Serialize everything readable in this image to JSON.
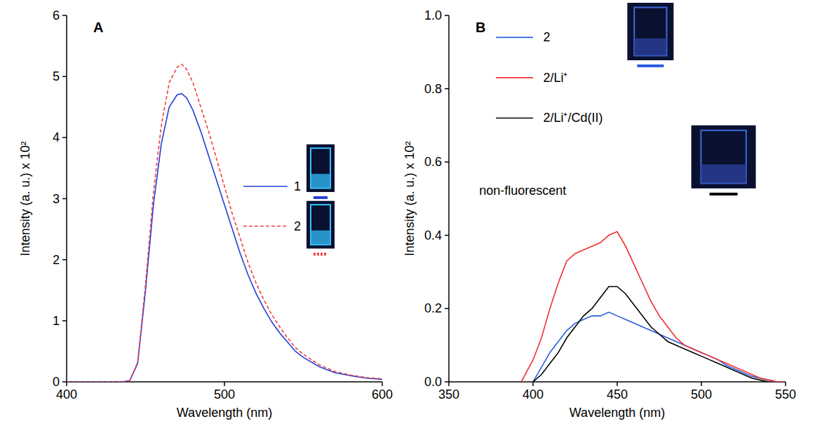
{
  "chart_data": [
    {
      "type": "line",
      "panel": "A",
      "x_label": "Wavelength (nm)",
      "y_label": "Intensity (a. u.) x 10²",
      "xlim": [
        400,
        600
      ],
      "xticks": [
        400,
        500,
        600
      ],
      "ylim": [
        0,
        6
      ],
      "yticks": [
        0,
        1,
        2,
        3,
        4,
        5,
        6
      ],
      "legend": "right",
      "series": [
        {
          "name": "1",
          "color": "#1f3fd6",
          "line_style": "solid",
          "x": [
            400,
            420,
            435,
            440,
            445,
            450,
            455,
            460,
            465,
            470,
            473,
            476,
            480,
            485,
            490,
            495,
            500,
            505,
            510,
            515,
            520,
            525,
            530,
            535,
            540,
            545,
            550,
            560,
            570,
            580,
            590,
            600
          ],
          "values": [
            0,
            0,
            0,
            0.02,
            0.3,
            1.5,
            2.9,
            3.9,
            4.5,
            4.7,
            4.72,
            4.65,
            4.45,
            4.1,
            3.7,
            3.3,
            2.9,
            2.5,
            2.1,
            1.75,
            1.45,
            1.2,
            0.98,
            0.8,
            0.65,
            0.5,
            0.4,
            0.25,
            0.15,
            0.1,
            0.06,
            0.04
          ]
        },
        {
          "name": "2",
          "color": "#f04040",
          "line_style": "dashed",
          "x": [
            400,
            420,
            435,
            440,
            445,
            450,
            455,
            460,
            465,
            470,
            473,
            476,
            480,
            485,
            490,
            495,
            500,
            505,
            510,
            515,
            520,
            525,
            530,
            535,
            540,
            545,
            550,
            560,
            570,
            580,
            590,
            600
          ],
          "values": [
            0,
            0,
            0,
            0.02,
            0.32,
            1.6,
            3.1,
            4.2,
            4.9,
            5.15,
            5.2,
            5.12,
            4.9,
            4.5,
            4.1,
            3.65,
            3.2,
            2.75,
            2.35,
            1.95,
            1.62,
            1.34,
            1.1,
            0.9,
            0.72,
            0.56,
            0.45,
            0.28,
            0.17,
            0.11,
            0.07,
            0.05
          ]
        }
      ]
    },
    {
      "type": "line",
      "panel": "B",
      "x_label": "Wavelength (nm)",
      "y_label": "Intensity (a. u.) x 10²",
      "xlim": [
        350,
        550
      ],
      "xticks": [
        350,
        400,
        450,
        500,
        550
      ],
      "ylim": [
        0,
        1
      ],
      "yticks": [
        {
          "value": 0,
          "label": "0.0"
        },
        0.2,
        0.4,
        0.6,
        0.8,
        {
          "value": 1,
          "label": "1.0"
        }
      ],
      "legend": "upper left",
      "annotations": [
        "non-fluorescent"
      ],
      "series": [
        {
          "name": "2",
          "color": "#2a5fe0",
          "line_style": "solid",
          "x": [
            400,
            405,
            410,
            415,
            420,
            425,
            430,
            435,
            440,
            445,
            450,
            455,
            460,
            465,
            470,
            475,
            480,
            485,
            490,
            495,
            500,
            505,
            510,
            515,
            520,
            525,
            530,
            535,
            540,
            545,
            550
          ],
          "values": [
            0,
            0.04,
            0.08,
            0.11,
            0.14,
            0.16,
            0.17,
            0.18,
            0.18,
            0.19,
            0.18,
            0.17,
            0.16,
            0.15,
            0.14,
            0.13,
            0.12,
            0.11,
            0.1,
            0.09,
            0.08,
            0.07,
            0.06,
            0.045,
            0.035,
            0.025,
            0.015,
            0.01,
            0.005,
            0,
            0
          ]
        },
        {
          "name": "2/Li⁺",
          "color": "#f03030",
          "line_style": "solid",
          "x": [
            393,
            400,
            405,
            410,
            415,
            420,
            425,
            430,
            435,
            440,
            445,
            450,
            455,
            460,
            465,
            470,
            475,
            480,
            485,
            490,
            495,
            500,
            505,
            510,
            515,
            520,
            525,
            530,
            535,
            540,
            545,
            550
          ],
          "values": [
            0,
            0.06,
            0.12,
            0.2,
            0.27,
            0.33,
            0.35,
            0.36,
            0.37,
            0.38,
            0.4,
            0.41,
            0.37,
            0.32,
            0.27,
            0.22,
            0.18,
            0.15,
            0.12,
            0.1,
            0.09,
            0.08,
            0.07,
            0.06,
            0.05,
            0.04,
            0.03,
            0.02,
            0.01,
            0.005,
            0,
            0
          ]
        },
        {
          "name": "2/Li⁺/Cd(II)",
          "color": "#000000",
          "line_style": "solid",
          "x": [
            400,
            405,
            410,
            415,
            420,
            425,
            430,
            435,
            440,
            445,
            450,
            455,
            460,
            465,
            470,
            475,
            480,
            485,
            490,
            495,
            500,
            505,
            510,
            515,
            520,
            525,
            530,
            535,
            540
          ],
          "values": [
            0,
            0.02,
            0.05,
            0.08,
            0.12,
            0.15,
            0.18,
            0.2,
            0.23,
            0.26,
            0.26,
            0.24,
            0.21,
            0.18,
            0.15,
            0.13,
            0.11,
            0.1,
            0.09,
            0.08,
            0.07,
            0.06,
            0.05,
            0.04,
            0.03,
            0.02,
            0.01,
            0.005,
            0
          ]
        }
      ]
    }
  ]
}
